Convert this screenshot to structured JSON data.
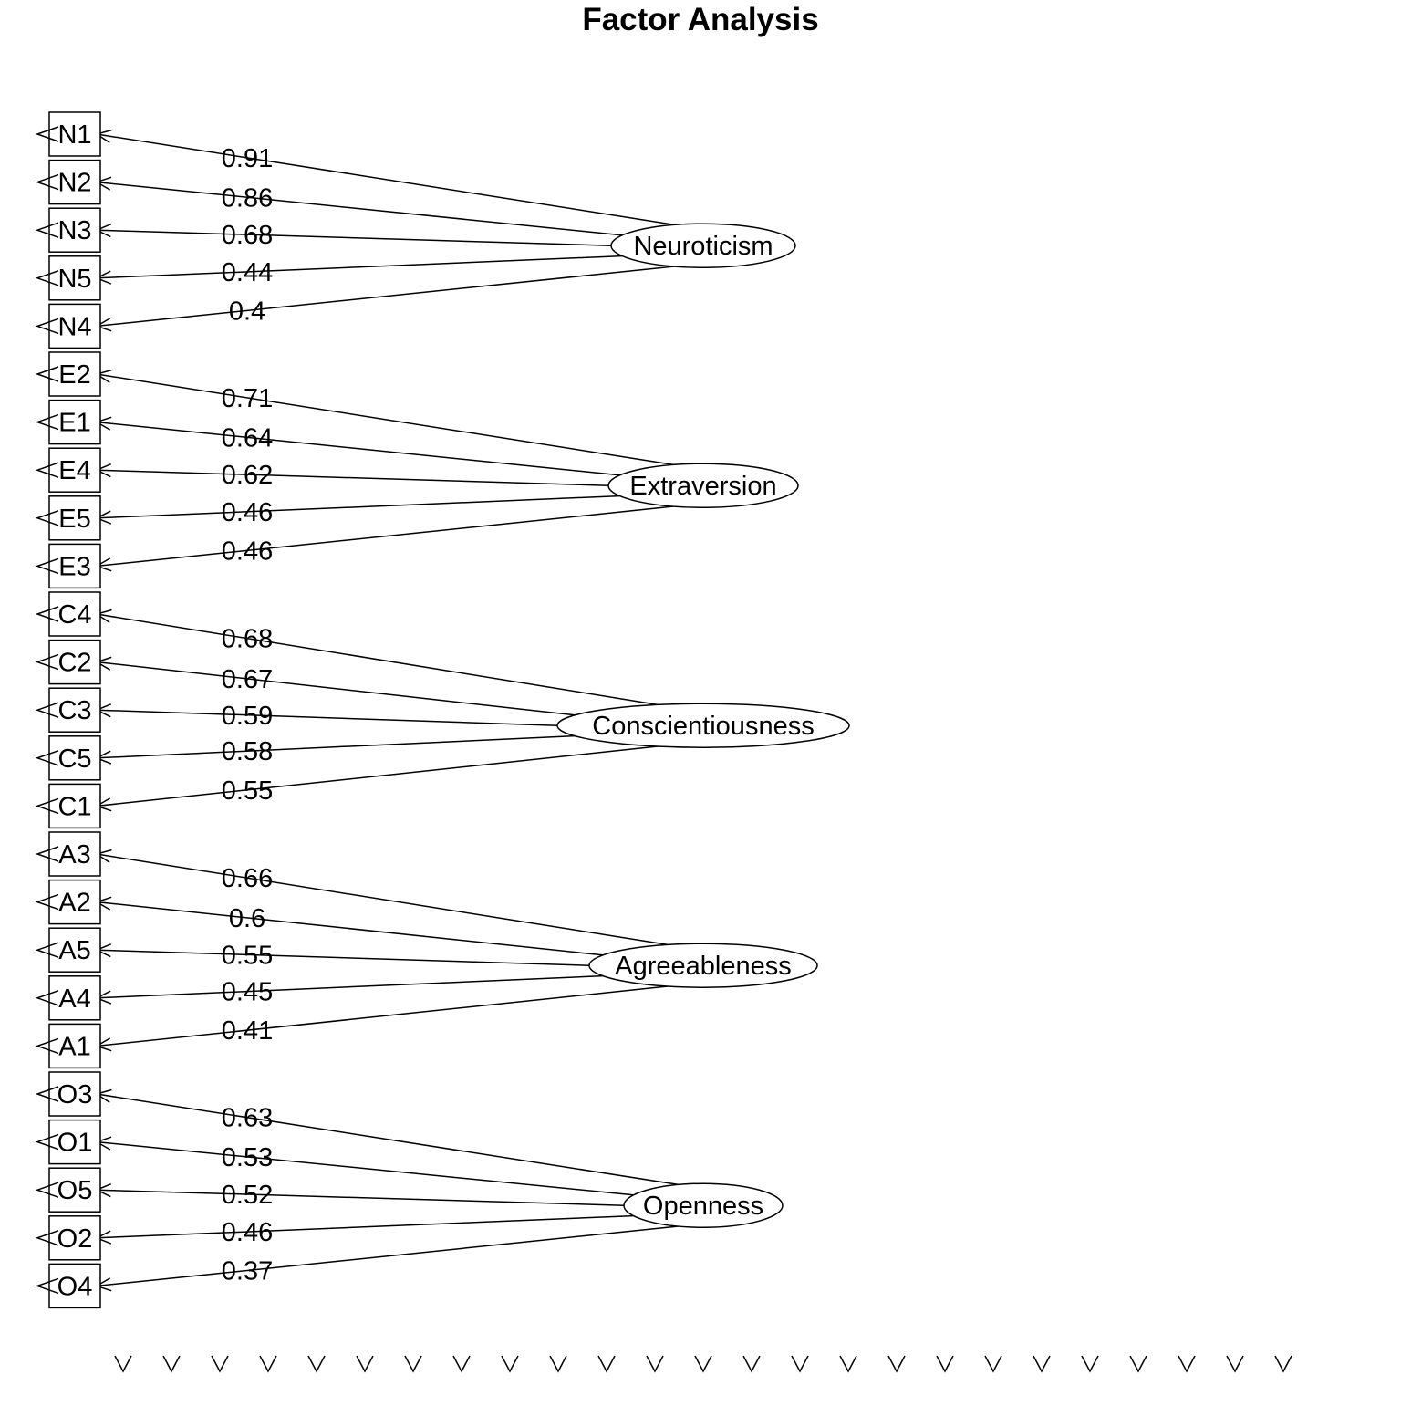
{
  "title": "Factor Analysis",
  "diagram": {
    "factors": [
      {
        "name": "Neuroticism",
        "indicators": [
          {
            "var": "N1",
            "loading": "0.91"
          },
          {
            "var": "N2",
            "loading": "0.86"
          },
          {
            "var": "N3",
            "loading": "0.68"
          },
          {
            "var": "N5",
            "loading": "0.44"
          },
          {
            "var": "N4",
            "loading": "0.4"
          }
        ]
      },
      {
        "name": "Extraversion",
        "indicators": [
          {
            "var": "E2",
            "loading": "0.71"
          },
          {
            "var": "E1",
            "loading": "0.64"
          },
          {
            "var": "E4",
            "loading": "0.62"
          },
          {
            "var": "E5",
            "loading": "0.46"
          },
          {
            "var": "E3",
            "loading": "0.46"
          }
        ]
      },
      {
        "name": "Conscientiousness",
        "indicators": [
          {
            "var": "C4",
            "loading": "0.68"
          },
          {
            "var": "C2",
            "loading": "0.67"
          },
          {
            "var": "C3",
            "loading": "0.59"
          },
          {
            "var": "C5",
            "loading": "0.58"
          },
          {
            "var": "C1",
            "loading": "0.55"
          }
        ]
      },
      {
        "name": "Agreeableness",
        "indicators": [
          {
            "var": "A3",
            "loading": "0.66"
          },
          {
            "var": "A2",
            "loading": "0.6"
          },
          {
            "var": "A5",
            "loading": "0.55"
          },
          {
            "var": "A4",
            "loading": "0.45"
          },
          {
            "var": "A1",
            "loading": "0.41"
          }
        ]
      },
      {
        "name": "Openness",
        "indicators": [
          {
            "var": "O3",
            "loading": "0.63"
          },
          {
            "var": "O1",
            "loading": "0.53"
          },
          {
            "var": "O5",
            "loading": "0.52"
          },
          {
            "var": "O2",
            "loading": "0.46"
          },
          {
            "var": "O4",
            "loading": "0.37"
          }
        ]
      }
    ],
    "error_term_count": 25
  }
}
